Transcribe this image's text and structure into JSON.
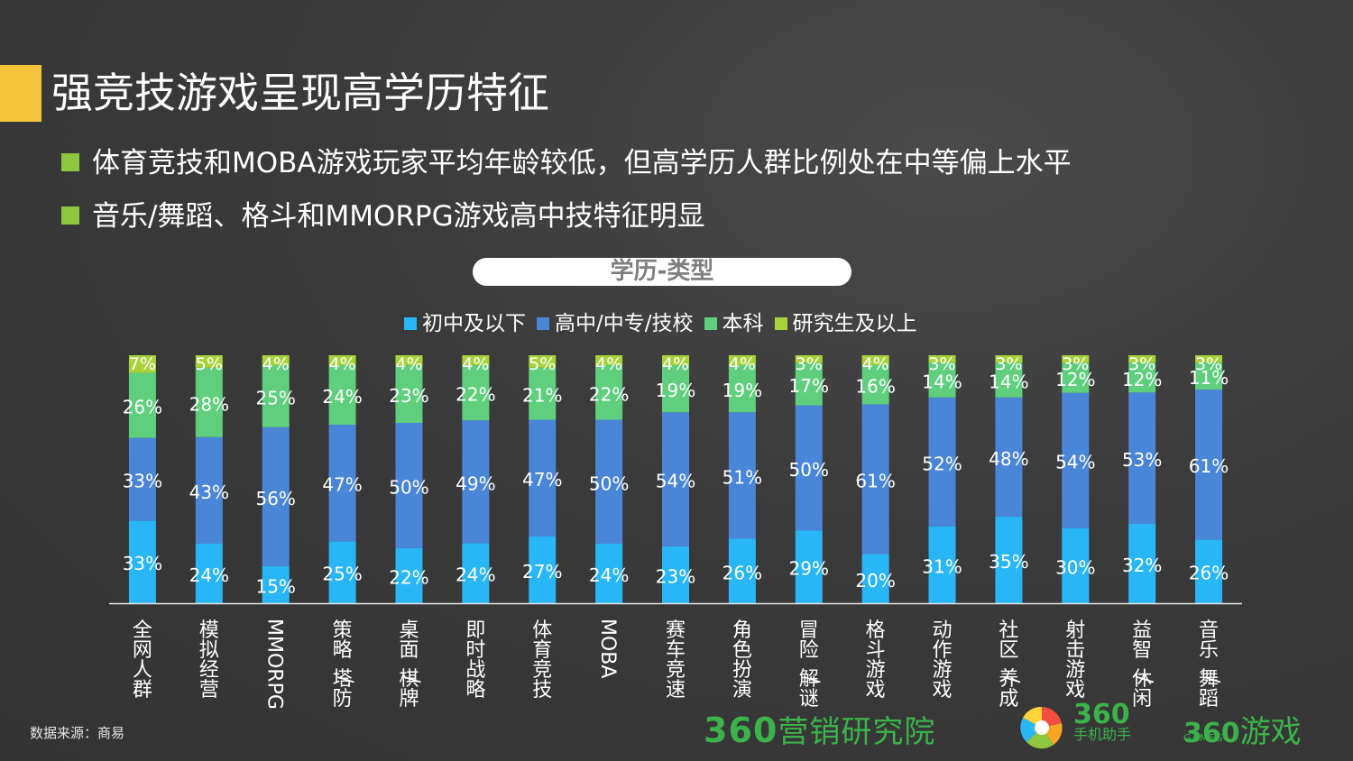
{
  "header": {
    "title": "强竞技游戏呈现高学历特征",
    "bullets": [
      "体育竞技和MOBA游戏玩家平均年龄较低，但高学历人群比例处在中等偏上水平",
      "音乐/舞蹈、格斗和MMORPG游戏高中技特征明显"
    ]
  },
  "colors": {
    "title_accent": "#f5c33b",
    "bullet": "#8dc63f",
    "brand": "#3bb34a"
  },
  "footer": {
    "source": "数据来源：商易",
    "brand_marketing_num": "360",
    "brand_marketing_text": "营销研究院",
    "brand_mobile_num": "360",
    "brand_mobile_text": "手机助手",
    "brand_games_num": "360",
    "brand_games_text": "游戏",
    "brand_games_en": "GAMES"
  },
  "chart_data": {
    "type": "bar",
    "stacked": true,
    "percent": true,
    "title": "学历-类型",
    "categories": [
      "全网人群",
      "模拟经营",
      "MMORPG",
      "策略/塔防",
      "桌面/棋牌",
      "即时战略",
      "体育竞技",
      "MOBA",
      "赛车竞速",
      "角色扮演",
      "冒险/解谜",
      "格斗游戏",
      "动作游戏",
      "社区/养成",
      "射击游戏",
      "益智/休闲",
      "音乐/舞蹈"
    ],
    "series": [
      {
        "name": "初中及以下",
        "color": "#29b6f6",
        "values": [
          33,
          24,
          15,
          25,
          22,
          24,
          27,
          24,
          23,
          26,
          29,
          20,
          31,
          35,
          30,
          32,
          26
        ]
      },
      {
        "name": "高中/中专/技校",
        "color": "#4a86d8",
        "values": [
          33,
          43,
          56,
          47,
          50,
          49,
          47,
          50,
          54,
          51,
          50,
          61,
          52,
          48,
          54,
          53,
          61
        ]
      },
      {
        "name": "本科",
        "color": "#5fcf7d",
        "values": [
          26,
          28,
          25,
          24,
          23,
          22,
          21,
          22,
          19,
          19,
          17,
          16,
          14,
          14,
          12,
          12,
          11
        ]
      },
      {
        "name": "研究生及以上",
        "color": "#a8d23a",
        "values": [
          7,
          5,
          4,
          4,
          4,
          4,
          5,
          4,
          4,
          4,
          3,
          4,
          3,
          3,
          3,
          3,
          3
        ]
      }
    ],
    "value_suffix": "%",
    "legend_position": "top",
    "grid": false
  }
}
